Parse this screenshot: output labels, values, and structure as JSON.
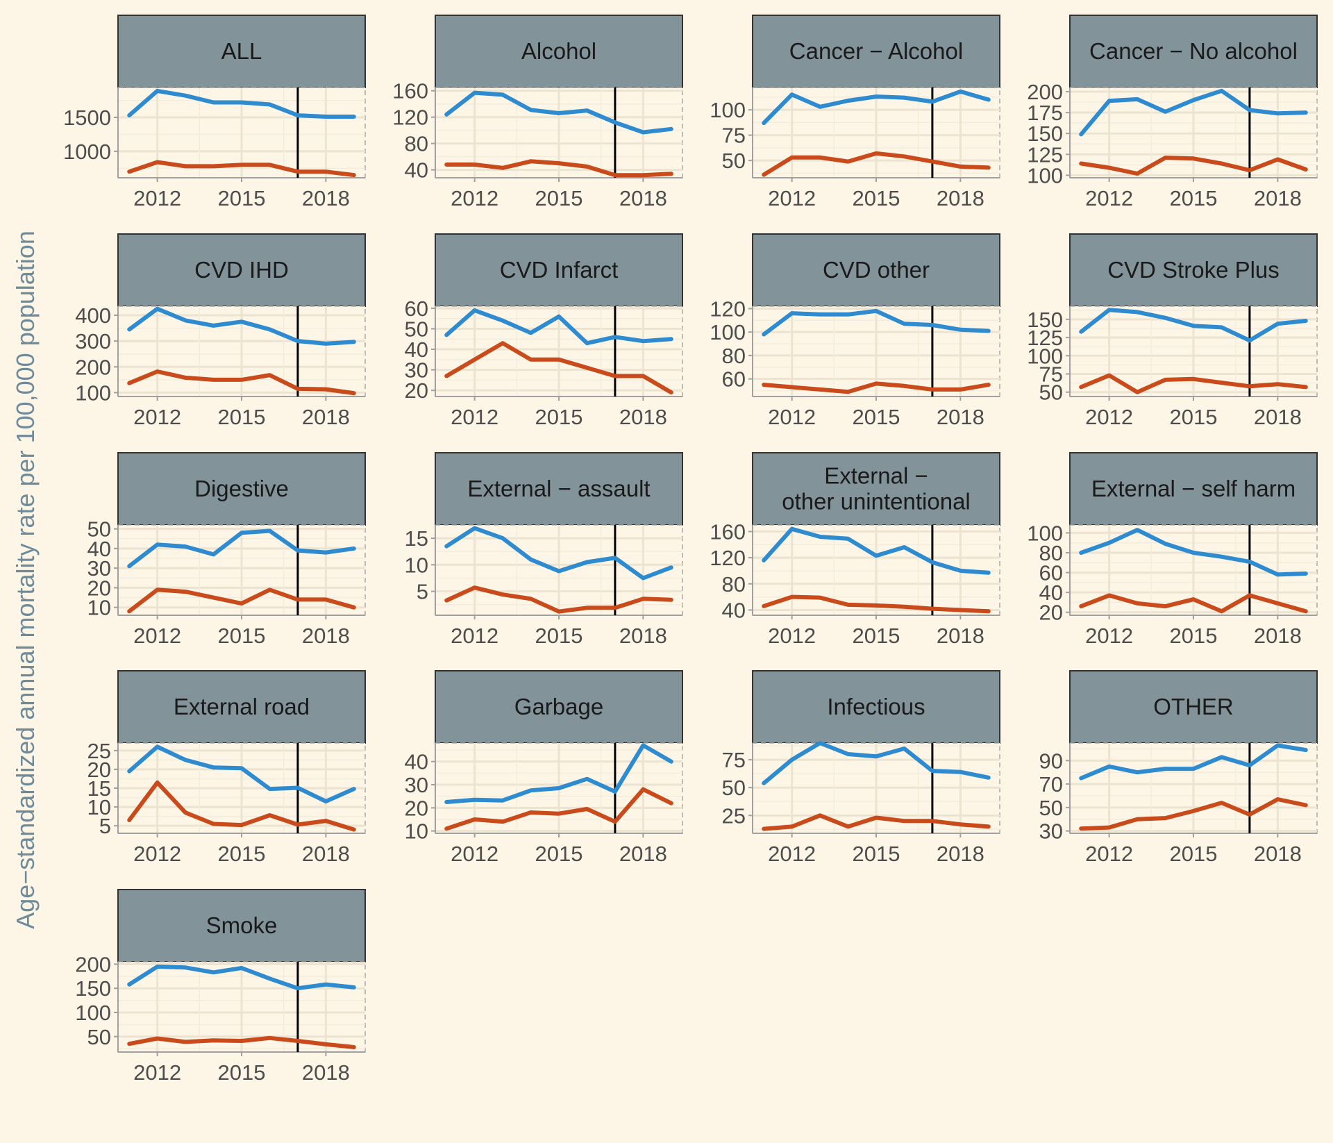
{
  "chart_data": {
    "type": "line",
    "ylabel": "Age−standardized annual mortality rate per 100,000 population",
    "colors": {
      "series_a": "#2e8bd0",
      "series_b": "#c94a1a",
      "strip": "#82949a",
      "background": "#fdf6e6"
    },
    "vline_x": 2017,
    "xlim": [
      2010.6,
      2019.4
    ],
    "x_ticks": [
      2012,
      2015,
      2018
    ],
    "x": [
      2011,
      2012,
      2013,
      2014,
      2015,
      2016,
      2017,
      2018,
      2019
    ],
    "panels": [
      {
        "title": [
          "ALL"
        ],
        "ylim": [
          610,
          1940
        ],
        "yticks": [
          1000,
          1500
        ],
        "series": [
          {
            "name": "series_a",
            "values": [
              1530,
              1890,
              1820,
              1720,
              1720,
              1690,
              1530,
              1510,
              1510
            ]
          },
          {
            "name": "series_b",
            "values": [
              700,
              840,
              780,
              780,
              800,
              800,
              700,
              700,
              650
            ]
          }
        ]
      },
      {
        "title": [
          "Alcohol"
        ],
        "ylim": [
          28,
          165
        ],
        "yticks": [
          40,
          80,
          120,
          160
        ],
        "series": [
          {
            "name": "series_a",
            "values": [
              124,
              157,
              154,
              131,
              126,
              130,
              112,
              97,
              102
            ]
          },
          {
            "name": "series_b",
            "values": [
              48,
              48,
              43,
              53,
              50,
              45,
              32,
              32,
              34
            ]
          }
        ]
      },
      {
        "title": [
          "Cancer − Alcohol"
        ],
        "ylim": [
          33,
          122
        ],
        "yticks": [
          50,
          75,
          100
        ],
        "series": [
          {
            "name": "series_a",
            "values": [
              87,
              115,
              103,
              109,
              113,
              112,
              108,
              118,
              110
            ]
          },
          {
            "name": "series_b",
            "values": [
              36,
              53,
              53,
              49,
              57,
              54,
              49,
              44,
              43
            ]
          }
        ]
      },
      {
        "title": [
          "Cancer − No alcohol"
        ],
        "ylim": [
          97,
          205
        ],
        "yticks": [
          100,
          125,
          150,
          175,
          200
        ],
        "series": [
          {
            "name": "series_a",
            "values": [
              149,
              189,
              191,
              176,
              190,
              201,
              178,
              174,
              175
            ]
          },
          {
            "name": "series_b",
            "values": [
              114,
              109,
              102,
              121,
              120,
              114,
              106,
              119,
              107
            ]
          }
        ]
      },
      {
        "title": [
          "CVD IHD"
        ],
        "ylim": [
          85,
          435
        ],
        "yticks": [
          100,
          200,
          300,
          400
        ],
        "series": [
          {
            "name": "series_a",
            "values": [
              345,
              425,
              380,
              360,
              375,
              345,
              300,
              290,
              297
            ]
          },
          {
            "name": "series_b",
            "values": [
              137,
              182,
              158,
              150,
              150,
              168,
              115,
              113,
              98
            ]
          }
        ]
      },
      {
        "title": [
          "CVD Infarct"
        ],
        "ylim": [
          17,
          61
        ],
        "yticks": [
          20,
          30,
          40,
          50,
          60
        ],
        "series": [
          {
            "name": "series_a",
            "values": [
              47,
              59,
              54,
              48,
              56,
              43,
              46,
              44,
              45
            ]
          },
          {
            "name": "series_b",
            "values": [
              27,
              35,
              43,
              35,
              35,
              31,
              27,
              27,
              19
            ]
          }
        ]
      },
      {
        "title": [
          "CVD other"
        ],
        "ylim": [
          45,
          122
        ],
        "yticks": [
          60,
          80,
          100,
          120
        ],
        "series": [
          {
            "name": "series_a",
            "values": [
              98,
              116,
              115,
              115,
              118,
              107,
              106,
              102,
              101
            ]
          },
          {
            "name": "series_b",
            "values": [
              55,
              53,
              51,
              49,
              56,
              54,
              51,
              51,
              55
            ]
          }
        ]
      },
      {
        "title": [
          "CVD Stroke Plus"
        ],
        "ylim": [
          44,
          168
        ],
        "yticks": [
          50,
          75,
          100,
          125,
          150
        ],
        "series": [
          {
            "name": "series_a",
            "values": [
              133,
              163,
              160,
              152,
              141,
              139,
              121,
              144,
              148
            ]
          },
          {
            "name": "series_b",
            "values": [
              57,
              73,
              50,
              67,
              68,
              63,
              58,
              61,
              57
            ]
          }
        ]
      },
      {
        "title": [
          "Digestive"
        ],
        "ylim": [
          6,
          52
        ],
        "yticks": [
          10,
          20,
          30,
          40,
          50
        ],
        "series": [
          {
            "name": "series_a",
            "values": [
              31,
              42,
              41,
              37,
              48,
              49,
              39,
              38,
              40
            ]
          },
          {
            "name": "series_b",
            "values": [
              8,
              19,
              18,
              15,
              12,
              19,
              14,
              14,
              10
            ]
          }
        ]
      },
      {
        "title": [
          "External − assault"
        ],
        "ylim": [
          0.5,
          17.5
        ],
        "yticks": [
          5,
          10,
          15
        ],
        "series": [
          {
            "name": "series_a",
            "values": [
              13.5,
              16.9,
              15.0,
              11.0,
              8.8,
              10.5,
              11.3,
              7.5,
              9.5
            ]
          },
          {
            "name": "series_b",
            "values": [
              3.3,
              5.7,
              4.4,
              3.6,
              1.2,
              1.9,
              1.9,
              3.6,
              3.4
            ]
          }
        ]
      },
      {
        "title": [
          "External −",
          "other unintentional"
        ],
        "ylim": [
          32,
          170
        ],
        "yticks": [
          40,
          80,
          120,
          160
        ],
        "series": [
          {
            "name": "series_a",
            "values": [
              116,
              164,
              152,
              149,
              123,
              136,
              113,
              100,
              97
            ]
          },
          {
            "name": "series_b",
            "values": [
              46,
              60,
              59,
              48,
              47,
              45,
              42,
              40,
              38
            ]
          }
        ]
      },
      {
        "title": [
          "External − self harm"
        ],
        "ylim": [
          17,
          108
        ],
        "yticks": [
          20,
          40,
          60,
          80,
          100
        ],
        "series": [
          {
            "name": "series_a",
            "values": [
              80,
              90,
              103,
              89,
              80,
              76,
              71,
              58,
              59
            ]
          },
          {
            "name": "series_b",
            "values": [
              26,
              37,
              29,
              26,
              33,
              21,
              37,
              29,
              21
            ]
          }
        ]
      },
      {
        "title": [
          "External road"
        ],
        "ylim": [
          3,
          27
        ],
        "yticks": [
          5,
          10,
          15,
          20,
          25
        ],
        "series": [
          {
            "name": "series_a",
            "values": [
              19.5,
              26.0,
              22.5,
              20.5,
              20.3,
              14.8,
              15.1,
              11.5,
              14.8
            ]
          },
          {
            "name": "series_b",
            "values": [
              6.5,
              16.5,
              8.5,
              5.5,
              5.2,
              7.8,
              5.3,
              6.3,
              4.0
            ]
          }
        ]
      },
      {
        "title": [
          "Garbage"
        ],
        "ylim": [
          9,
          48
        ],
        "yticks": [
          10,
          20,
          30,
          40
        ],
        "series": [
          {
            "name": "series_a",
            "values": [
              22.5,
              23.5,
              23.2,
              27.5,
              28.5,
              32.5,
              27.0,
              47.0,
              40.0
            ]
          },
          {
            "name": "series_b",
            "values": [
              11.0,
              15.0,
              14.0,
              18.0,
              17.5,
              19.5,
              14.0,
              28.0,
              22.0
            ]
          }
        ]
      },
      {
        "title": [
          "Infectious"
        ],
        "ylim": [
          9,
          90
        ],
        "yticks": [
          25,
          50,
          75
        ],
        "series": [
          {
            "name": "series_a",
            "values": [
              54,
              75,
              90,
              80,
              78,
              85,
              65,
              64,
              59
            ]
          },
          {
            "name": "series_b",
            "values": [
              13,
              15,
              25,
              15,
              23,
              20,
              20,
              17,
              15
            ]
          }
        ]
      },
      {
        "title": [
          "OTHER"
        ],
        "ylim": [
          28,
          105
        ],
        "yticks": [
          30,
          50,
          70,
          90
        ],
        "series": [
          {
            "name": "series_a",
            "values": [
              75,
              85,
              80,
              83,
              83,
              93,
              86,
              103,
              99
            ]
          },
          {
            "name": "series_b",
            "values": [
              32,
              33,
              40,
              41,
              47,
              54,
              44,
              57,
              52
            ]
          }
        ]
      },
      {
        "title": [
          "Smoke"
        ],
        "ylim": [
          18,
          205
        ],
        "yticks": [
          50,
          100,
          150,
          200
        ],
        "series": [
          {
            "name": "series_a",
            "values": [
              158,
              195,
              193,
              183,
              192,
              170,
              150,
              158,
              152
            ]
          },
          {
            "name": "series_b",
            "values": [
              35,
              46,
              39,
              42,
              41,
              47,
              41,
              34,
              28
            ]
          }
        ]
      }
    ]
  }
}
